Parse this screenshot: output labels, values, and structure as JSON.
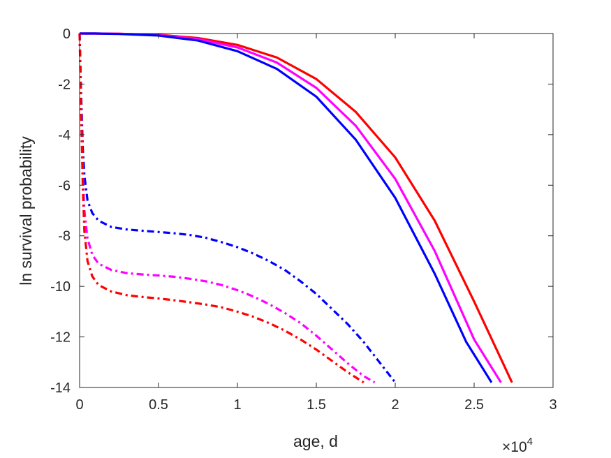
{
  "chart_data": {
    "type": "line",
    "title": "",
    "xlabel": "age, d",
    "ylabel": "ln survival probability",
    "x_exponent_label": "×10",
    "x_exponent_power": "4",
    "xlim": [
      0,
      30000
    ],
    "ylim": [
      -14,
      0
    ],
    "xticks": [
      0,
      5000,
      10000,
      15000,
      20000,
      25000,
      30000
    ],
    "xtick_labels": [
      "0",
      "0.5",
      "1",
      "1.5",
      "2",
      "2.5",
      "3"
    ],
    "yticks": [
      0,
      -2,
      -4,
      -6,
      -8,
      -10,
      -12,
      -14
    ],
    "ytick_labels": [
      "0",
      "-2",
      "-4",
      "-6",
      "-8",
      "-10",
      "-12",
      "-14"
    ],
    "grid": false,
    "series": [
      {
        "color": "#ff0000",
        "style": "solid",
        "x": [
          0,
          1000,
          2500,
          5000,
          7500,
          10000,
          12500,
          15000,
          17500,
          20000,
          22500,
          25000,
          26500,
          27400
        ],
        "y": [
          0,
          0,
          -0.01,
          -0.05,
          -0.18,
          -0.45,
          -0.95,
          -1.8,
          -3.1,
          -4.9,
          -7.4,
          -10.6,
          -12.6,
          -13.8
        ]
      },
      {
        "color": "#ff00ff",
        "style": "solid",
        "x": [
          0,
          1000,
          2500,
          5000,
          7500,
          10000,
          12500,
          15000,
          17500,
          20000,
          22500,
          25000,
          26700
        ],
        "y": [
          0,
          0,
          -0.01,
          -0.06,
          -0.22,
          -0.55,
          -1.15,
          -2.15,
          -3.65,
          -5.75,
          -8.6,
          -12.1,
          -13.8
        ]
      },
      {
        "color": "#0000ff",
        "style": "solid",
        "x": [
          0,
          1000,
          2500,
          5000,
          7500,
          10000,
          12500,
          15000,
          17500,
          20000,
          22500,
          24500,
          26100
        ],
        "y": [
          0,
          0,
          -0.02,
          -0.08,
          -0.28,
          -0.7,
          -1.4,
          -2.5,
          -4.2,
          -6.5,
          -9.5,
          -12.2,
          -13.8
        ]
      },
      {
        "color": "#0000ff",
        "style": "dashdot",
        "x": [
          0,
          100,
          200,
          300,
          500,
          800,
          1200,
          2000,
          3000,
          4000,
          5000,
          6000,
          7000,
          8000,
          9000,
          10000,
          11000,
          12000,
          13000,
          14000,
          15000,
          16000,
          17000,
          18000,
          19000,
          20000
        ],
        "y": [
          0,
          -2.5,
          -4.5,
          -5.6,
          -6.6,
          -7.1,
          -7.4,
          -7.65,
          -7.75,
          -7.8,
          -7.85,
          -7.9,
          -7.97,
          -8.08,
          -8.25,
          -8.45,
          -8.7,
          -9.0,
          -9.35,
          -9.8,
          -10.3,
          -10.9,
          -11.5,
          -12.2,
          -13.0,
          -13.8
        ]
      },
      {
        "color": "#ff00ff",
        "style": "dashdot",
        "x": [
          0,
          100,
          200,
          300,
          500,
          800,
          1200,
          2000,
          3000,
          4000,
          5000,
          6000,
          7000,
          8000,
          9000,
          10000,
          11000,
          12000,
          13000,
          14000,
          15000,
          16000,
          17000,
          18000,
          18700
        ],
        "y": [
          0,
          -3.0,
          -5.5,
          -7.0,
          -8.1,
          -8.75,
          -9.1,
          -9.35,
          -9.48,
          -9.53,
          -9.57,
          -9.62,
          -9.7,
          -9.8,
          -9.95,
          -10.15,
          -10.4,
          -10.7,
          -11.05,
          -11.45,
          -11.95,
          -12.5,
          -13.05,
          -13.55,
          -13.8
        ]
      },
      {
        "color": "#ff0000",
        "style": "dashdot",
        "x": [
          0,
          100,
          200,
          300,
          500,
          800,
          1200,
          2000,
          3000,
          4000,
          5000,
          6000,
          7000,
          8000,
          9000,
          10000,
          11000,
          12000,
          13000,
          14000,
          15000,
          16000,
          17000,
          18000
        ],
        "y": [
          0,
          -3.2,
          -6.0,
          -7.8,
          -9.0,
          -9.6,
          -9.95,
          -10.2,
          -10.35,
          -10.42,
          -10.48,
          -10.55,
          -10.63,
          -10.72,
          -10.83,
          -11.0,
          -11.2,
          -11.45,
          -11.75,
          -12.1,
          -12.5,
          -12.95,
          -13.4,
          -13.8
        ]
      }
    ]
  }
}
